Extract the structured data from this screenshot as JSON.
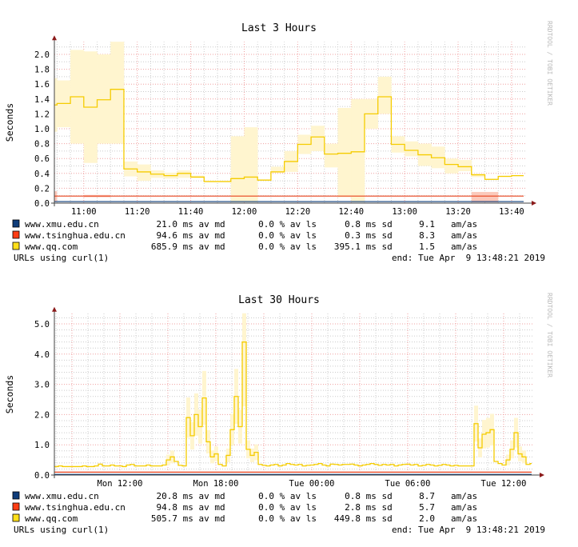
{
  "chart_data": [
    {
      "type": "line",
      "title": "Last 3 Hours",
      "ylabel": "Seconds",
      "watermark": "RRDTOOL / TOBI OETIKER",
      "ylim": [
        0,
        2.17
      ],
      "yticks": [
        {
          "v": 0,
          "l": "0.0"
        },
        {
          "v": 0.2,
          "l": "0.2"
        },
        {
          "v": 0.4,
          "l": "0.4"
        },
        {
          "v": 0.6,
          "l": "0.6"
        },
        {
          "v": 0.8,
          "l": "0.8"
        },
        {
          "v": 1.0,
          "l": "1.0"
        },
        {
          "v": 1.2,
          "l": "1.2"
        },
        {
          "v": 1.4,
          "l": "1.4"
        },
        {
          "v": 1.6,
          "l": "1.6"
        },
        {
          "v": 1.8,
          "l": "1.8"
        },
        {
          "v": 2.0,
          "l": "2.0"
        }
      ],
      "x_start_min": 649,
      "x_end_min": 824.5,
      "step_min": 5,
      "first_bin_start_min": 650,
      "xticks": [
        {
          "m": 660,
          "l": "11:00"
        },
        {
          "m": 680,
          "l": "11:20"
        },
        {
          "m": 700,
          "l": "11:40"
        },
        {
          "m": 720,
          "l": "12:00"
        },
        {
          "m": 740,
          "l": "12:20"
        },
        {
          "m": 760,
          "l": "12:40"
        },
        {
          "m": 780,
          "l": "13:00"
        },
        {
          "m": 800,
          "l": "13:20"
        },
        {
          "m": 820,
          "l": "13:40"
        }
      ],
      "qq_partial": {
        "median": 1.32,
        "min": 0.96,
        "max": 1.68
      },
      "qq_median": [
        1.34,
        1.43,
        1.29,
        1.39,
        1.53,
        0.46,
        0.42,
        0.39,
        0.37,
        0.4,
        0.35,
        0.29,
        0.29,
        0.33,
        0.35,
        0.31,
        0.42,
        0.56,
        0.79,
        0.89,
        0.66,
        0.67,
        0.69,
        1.2,
        1.43,
        0.79,
        0.71,
        0.65,
        0.61,
        0.52,
        0.49,
        0.38,
        0.32,
        0.36,
        0.37
      ],
      "qq_min": [
        1.02,
        0.8,
        0.54,
        0.8,
        0.8,
        0.36,
        0.3,
        0.34,
        0.33,
        0.34,
        0.34,
        0.28,
        0.28,
        0.01,
        0.01,
        0.31,
        0.42,
        0.42,
        0.66,
        0.7,
        0.48,
        0.08,
        0.01,
        1.0,
        1.2,
        0.68,
        0.63,
        0.5,
        0.47,
        0.4,
        0.43,
        0.35,
        0.31,
        0.35,
        0.36
      ],
      "qq_max": [
        1.65,
        2.06,
        2.04,
        2.0,
        2.17,
        0.56,
        0.52,
        0.44,
        0.41,
        0.44,
        0.37,
        0.3,
        0.3,
        0.9,
        1.02,
        0.31,
        0.49,
        0.7,
        0.92,
        1.04,
        0.8,
        1.28,
        1.4,
        1.4,
        1.7,
        0.9,
        0.83,
        0.8,
        0.76,
        0.6,
        0.58,
        0.4,
        0.32,
        0.36,
        0.37
      ],
      "tsinghua_median": 0.095,
      "xmu_median": 0.021,
      "tsinghua_bands": [
        {
          "from": 649,
          "to": 650,
          "min": 0.02,
          "max": 0.16
        },
        {
          "from": 660,
          "to": 670,
          "min": 0.08,
          "max": 0.11
        },
        {
          "from": 805,
          "to": 815,
          "min": 0.01,
          "max": 0.15
        }
      ],
      "legend": [
        {
          "name": "www.xmu.edu.cn",
          "color": "#0f3d7a",
          "md": "21.0",
          "ls": "0.0",
          "sd": "0.8",
          "amas": "9.1"
        },
        {
          "name": "www.tsinghua.edu.cn",
          "color": "#ff3d14",
          "md": "94.6",
          "ls": "0.0",
          "sd": "0.3",
          "amas": "8.3"
        },
        {
          "name": "www.qq.com",
          "color": "#ffe01a",
          "md": "685.9",
          "ls": "0.0",
          "sd": "395.1",
          "amas": "1.5"
        }
      ],
      "footer_left": "URLs using curl(1)",
      "footer_right": "end: Tue Apr  9 13:48:21 2019"
    },
    {
      "type": "line",
      "title": "Last 30 Hours",
      "ylabel": "Seconds",
      "watermark": "RRDTOOL / TOBI OETIKER",
      "ylim": [
        0,
        5.0
      ],
      "yticks": [
        {
          "v": 0,
          "l": "0.0"
        },
        {
          "v": 1,
          "l": "1.0"
        },
        {
          "v": 2,
          "l": "2.0"
        },
        {
          "v": 3,
          "l": "3.0"
        },
        {
          "v": 4,
          "l": "4.0"
        },
        {
          "v": 5,
          "l": "5.0"
        }
      ],
      "x_start_h": 7.9,
      "x_end_h": 37.75,
      "step_h": 0.25,
      "xticks": [
        {
          "h": 12,
          "l": "Mon 12:00"
        },
        {
          "h": 18,
          "l": "Mon 18:00"
        },
        {
          "h": 24,
          "l": "Tue 00:00"
        },
        {
          "h": 30,
          "l": "Tue 06:00"
        },
        {
          "h": 36,
          "l": "Tue 12:00"
        }
      ],
      "qq_median": [
        0.28,
        0.3,
        0.28,
        0.28,
        0.28,
        0.28,
        0.28,
        0.3,
        0.28,
        0.28,
        0.3,
        0.36,
        0.3,
        0.3,
        0.33,
        0.3,
        0.3,
        0.28,
        0.33,
        0.35,
        0.3,
        0.3,
        0.3,
        0.33,
        0.3,
        0.3,
        0.3,
        0.33,
        0.5,
        0.6,
        0.45,
        0.32,
        0.3,
        1.9,
        1.3,
        2.0,
        1.6,
        2.55,
        1.1,
        0.6,
        0.7,
        0.35,
        0.3,
        0.65,
        1.5,
        2.6,
        1.6,
        4.4,
        0.85,
        0.65,
        0.75,
        0.35,
        0.32,
        0.3,
        0.33,
        0.35,
        0.3,
        0.33,
        0.38,
        0.35,
        0.33,
        0.35,
        0.3,
        0.32,
        0.33,
        0.35,
        0.38,
        0.33,
        0.3,
        0.36,
        0.35,
        0.33,
        0.35,
        0.35,
        0.36,
        0.33,
        0.3,
        0.33,
        0.35,
        0.38,
        0.35,
        0.32,
        0.35,
        0.33,
        0.35,
        0.3,
        0.33,
        0.35,
        0.36,
        0.33,
        0.35,
        0.3,
        0.32,
        0.35,
        0.33,
        0.3,
        0.32,
        0.35,
        0.33,
        0.3,
        0.32,
        0.3,
        0.3,
        0.3,
        0.3,
        1.7,
        0.9,
        1.35,
        1.4,
        1.5,
        0.45,
        0.38,
        0.33,
        0.5,
        0.85,
        1.4,
        0.7,
        0.6,
        0.35,
        0.38
      ],
      "tsinghua_median": 0.095,
      "xmu_median": 0.021,
      "legend": [
        {
          "name": "www.xmu.edu.cn",
          "color": "#0f3d7a",
          "md": "20.8",
          "ls": "0.0",
          "sd": "0.8",
          "amas": "8.7"
        },
        {
          "name": "www.tsinghua.edu.cn",
          "color": "#ff3d14",
          "md": "94.8",
          "ls": "0.0",
          "sd": "2.8",
          "amas": "5.7"
        },
        {
          "name": "www.qq.com",
          "color": "#ffe01a",
          "md": "505.7",
          "ls": "0.0",
          "sd": "449.8",
          "amas": "2.0"
        }
      ],
      "footer_left": "URLs using curl(1)",
      "footer_right": "end: Tue Apr  9 13:48:21 2019"
    }
  ],
  "units": {
    "md": " ms av md",
    "ls": " % av ls",
    "sd": " ms sd",
    "amas": "am/as"
  }
}
